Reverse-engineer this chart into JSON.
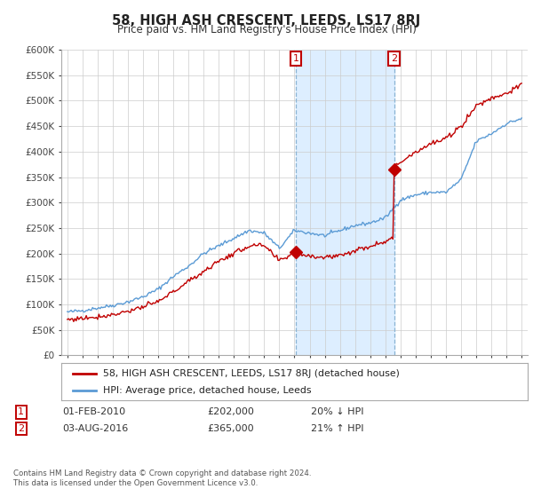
{
  "title": "58, HIGH ASH CRESCENT, LEEDS, LS17 8RJ",
  "subtitle": "Price paid vs. HM Land Registry's House Price Index (HPI)",
  "ylim": [
    0,
    600000
  ],
  "yticks": [
    0,
    50000,
    100000,
    150000,
    200000,
    250000,
    300000,
    350000,
    400000,
    450000,
    500000,
    550000,
    600000
  ],
  "ytick_labels": [
    "£0",
    "£50K",
    "£100K",
    "£150K",
    "£200K",
    "£250K",
    "£300K",
    "£350K",
    "£400K",
    "£450K",
    "£500K",
    "£550K",
    "£600K"
  ],
  "hpi_color": "#5b9bd5",
  "price_color": "#c00000",
  "shade_color": "#ddeeff",
  "m1_x": 2010.08,
  "m1_y": 202000,
  "m2_x": 2016.58,
  "m2_y": 365000,
  "legend_line1": "58, HIGH ASH CRESCENT, LEEDS, LS17 8RJ (detached house)",
  "legend_line2": "HPI: Average price, detached house, Leeds",
  "copyright": "Contains HM Land Registry data © Crown copyright and database right 2024.\nThis data is licensed under the Open Government Licence v3.0.",
  "background_color": "#ffffff",
  "grid_color": "#cccccc",
  "xlim_left": 1994.6,
  "xlim_right": 2025.4
}
